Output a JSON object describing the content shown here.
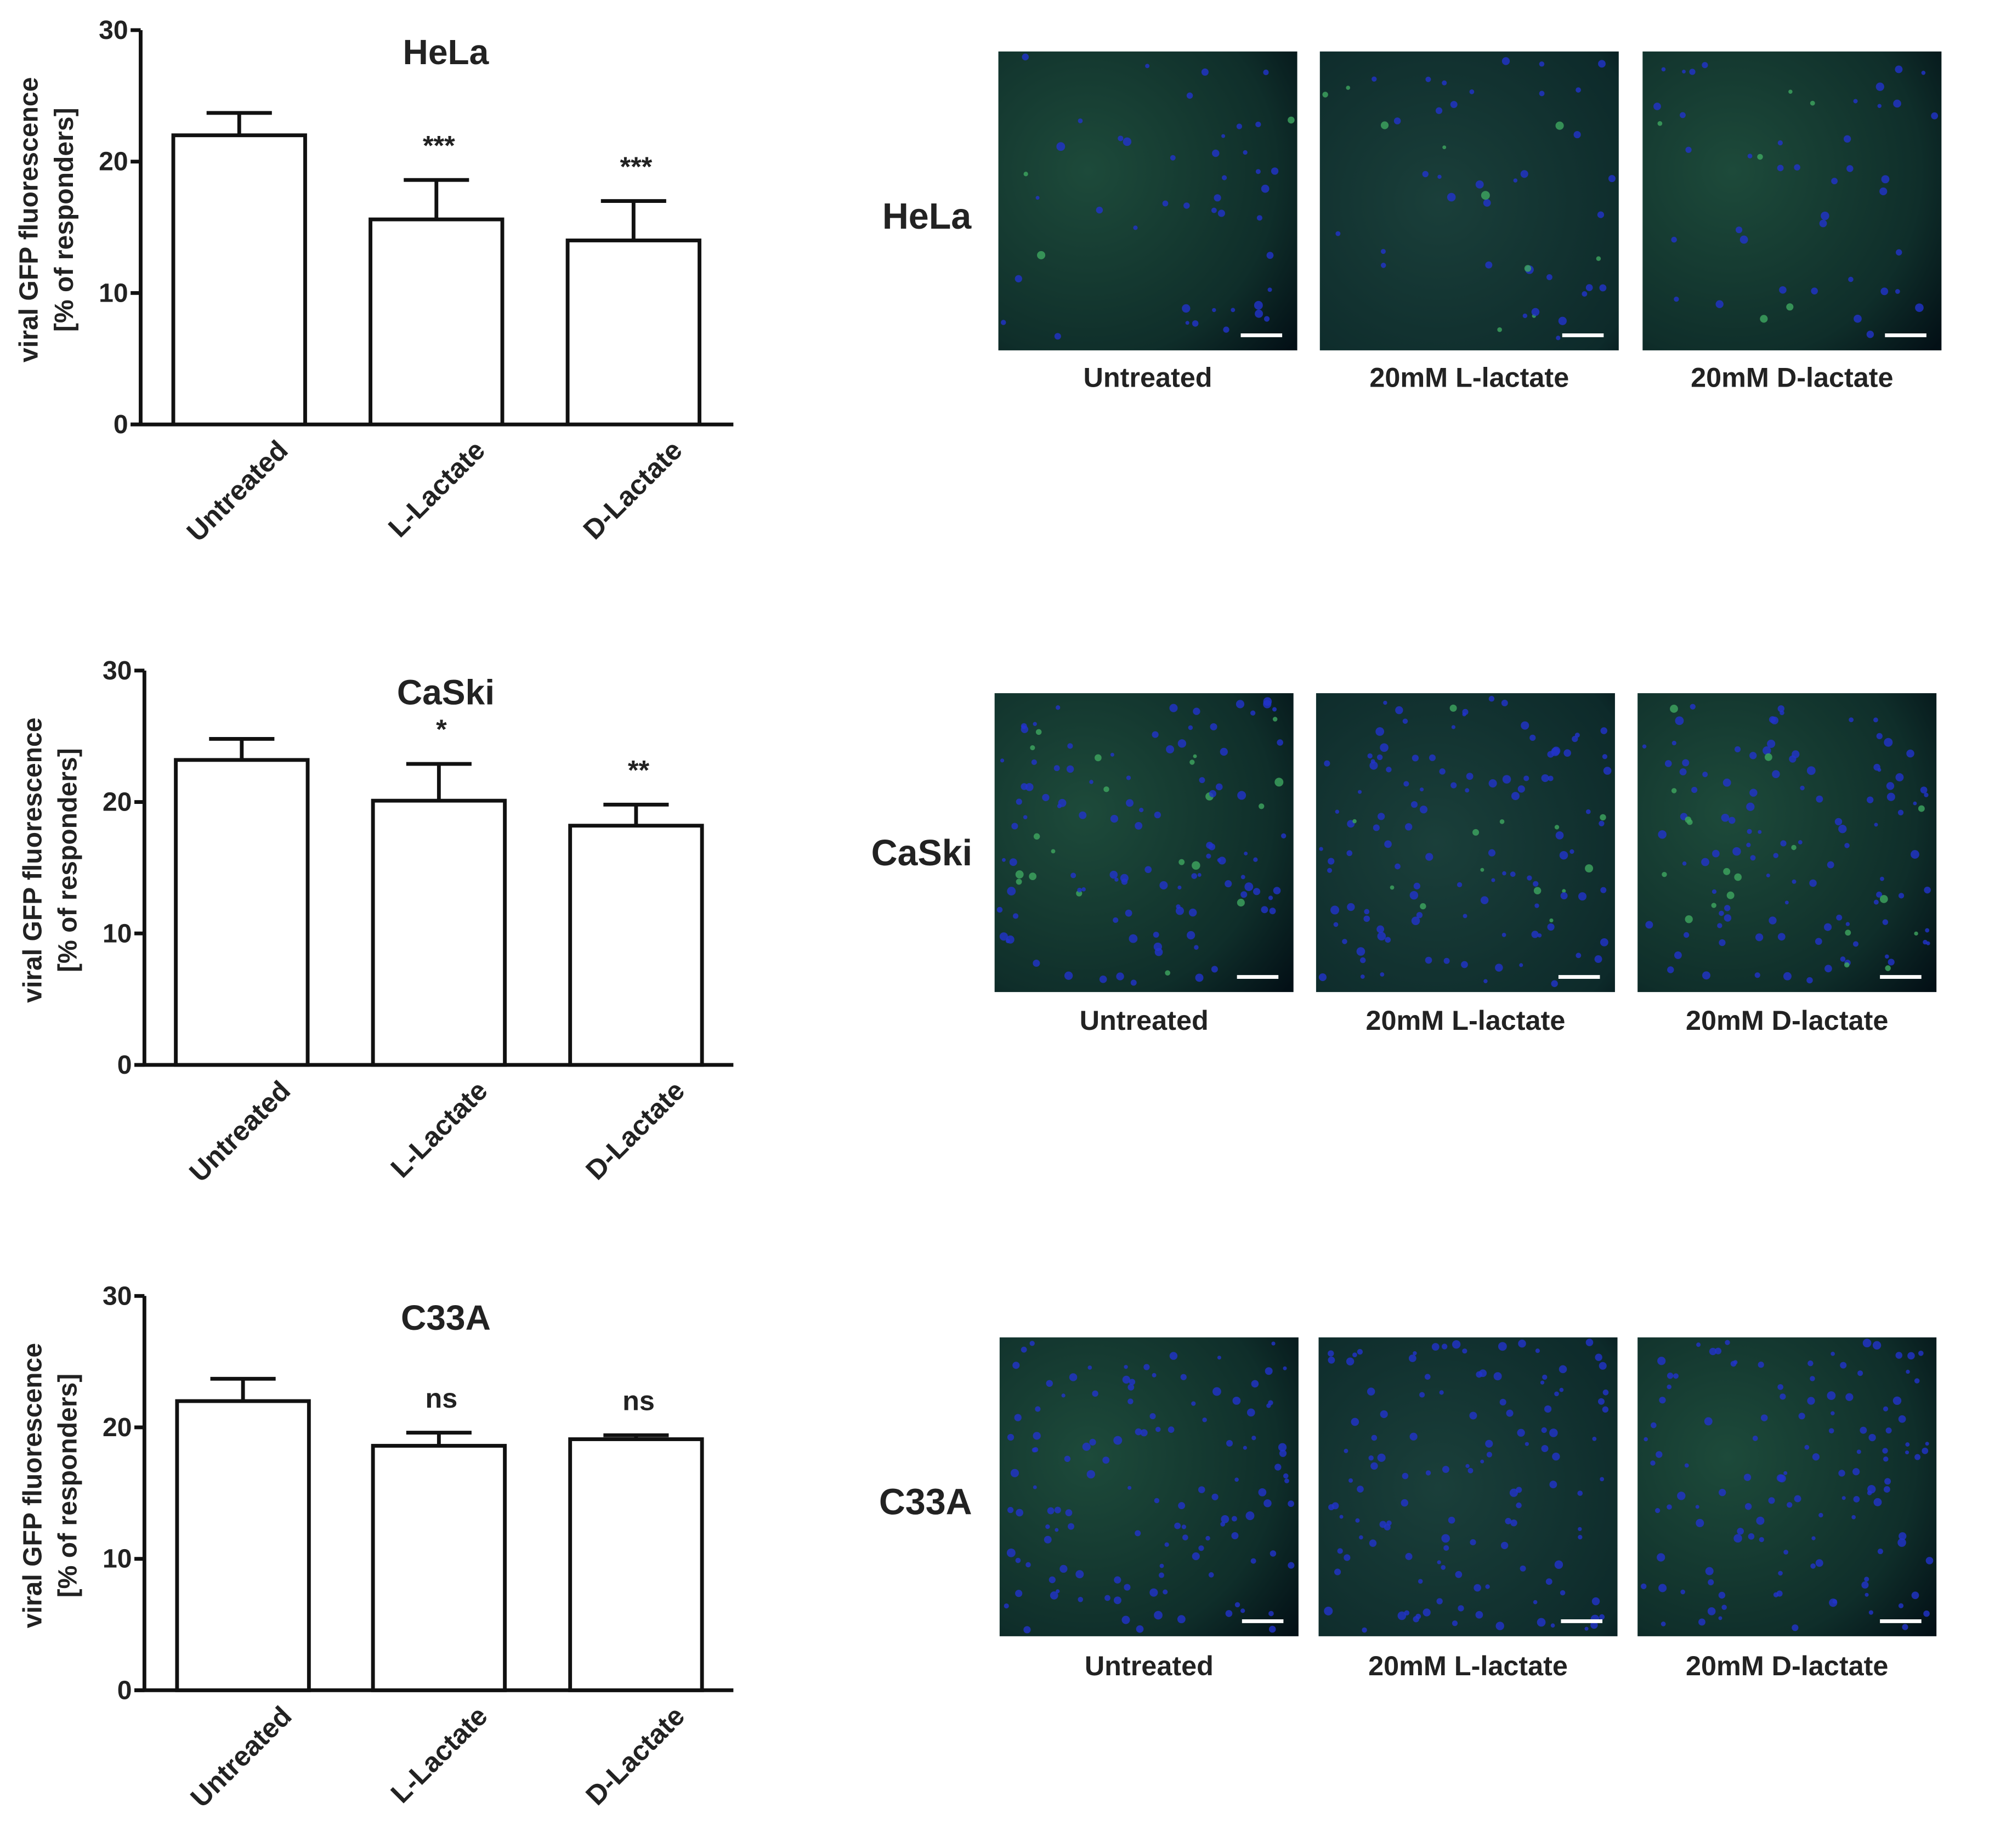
{
  "chart_data": [
    {
      "type": "bar",
      "title": "HeLa",
      "ylabel": [
        "viral GFP fluorescence",
        "[% of responders]"
      ],
      "categories": [
        "Untreated",
        "L-Lactate",
        "D-Lactate"
      ],
      "values": [
        22,
        15.6,
        14
      ],
      "errors": [
        1.7,
        3,
        3
      ],
      "annotations": [
        null,
        "***",
        "***"
      ],
      "color": "#ffffff",
      "ylim": [
        0,
        30
      ],
      "yticks": [
        0,
        10,
        20,
        30
      ]
    },
    {
      "type": "bar",
      "title": "CaSki",
      "ylabel": [
        "viral GFP fluorescence",
        "[% of responders]"
      ],
      "categories": [
        "Untreated",
        "L-Lactate",
        "D-Lactate"
      ],
      "values": [
        23.2,
        20.1,
        18.2
      ],
      "errors": [
        1.6,
        2.8,
        1.6
      ],
      "annotations": [
        null,
        "*",
        "**"
      ],
      "color": "#ffffff",
      "ylim": [
        0,
        30
      ],
      "yticks": [
        0,
        10,
        20,
        30
      ]
    },
    {
      "type": "bar",
      "title": "C33A",
      "ylabel": [
        "viral GFP fluorescence",
        "[% of responders]"
      ],
      "categories": [
        "Untreated",
        "L-Lactate",
        "D-Lactate"
      ],
      "values": [
        22,
        18.6,
        19.1
      ],
      "errors": [
        1.7,
        1,
        0.3
      ],
      "annotations": [
        null,
        "ns",
        "ns"
      ],
      "color": "#ffffff",
      "ylim": [
        0,
        30
      ],
      "yticks": [
        0,
        10,
        20,
        30
      ]
    }
  ],
  "micrographs": [
    {
      "row_label": "HeLa",
      "captions": [
        "Untreated",
        "20mM L-lactate",
        "20mM D-lactate"
      ]
    },
    {
      "row_label": "CaSki",
      "captions": [
        "Untreated",
        "20mM L-lactate",
        "20mM D-lactate"
      ]
    },
    {
      "row_label": "C33A",
      "captions": [
        "Untreated",
        "20mM L-lactate",
        "20mM D-lactate"
      ]
    }
  ]
}
